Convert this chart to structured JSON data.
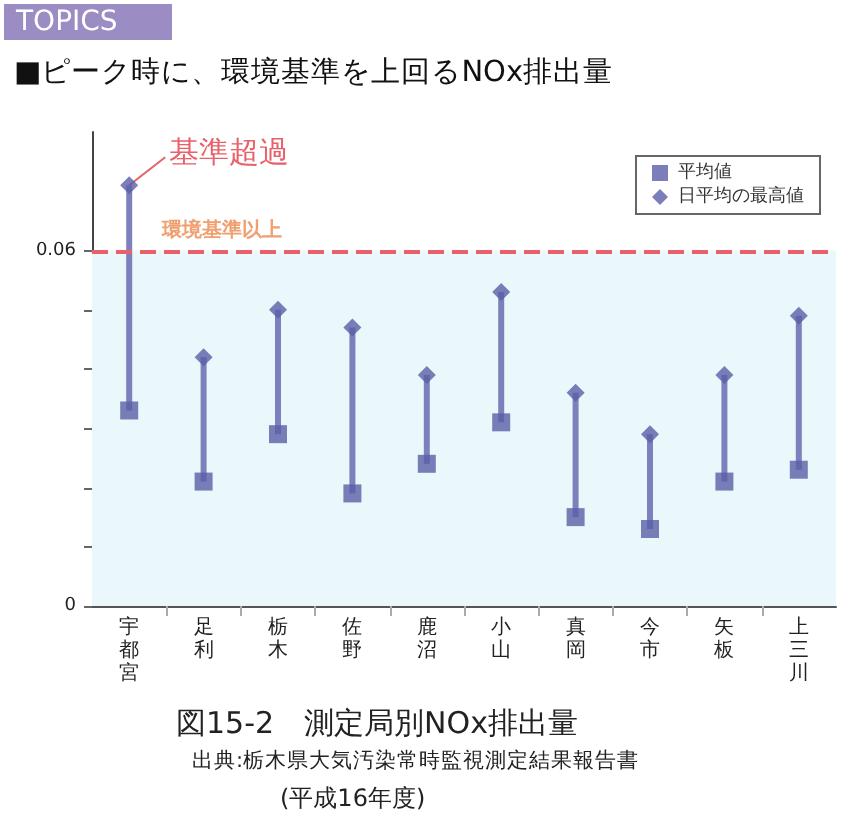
{
  "chart_data": {
    "type": "scatter",
    "title": "■ピーク時に、環境基準を上回るNOx排出量",
    "categories": [
      "宇都宮",
      "足利",
      "栃木",
      "佐野",
      "鹿沼",
      "小山",
      "真岡",
      "今市",
      "矢板",
      "上三川"
    ],
    "series": [
      {
        "name": "平均値",
        "color": "#5a5ea6",
        "marker": "square",
        "values": [
          0.033,
          0.021,
          0.029,
          0.019,
          0.024,
          0.031,
          0.015,
          0.013,
          0.021,
          0.023
        ]
      },
      {
        "name": "日平均の最高値",
        "color": "#5a5ea6",
        "marker": "diamond",
        "values": [
          0.071,
          0.042,
          0.05,
          0.047,
          0.039,
          0.053,
          0.036,
          0.029,
          0.039,
          0.049
        ]
      }
    ],
    "ylim": [
      0,
      0.08
    ],
    "yticks": [
      0,
      {
        "value": 0.01,
        "label": null
      },
      {
        "value": 0.02,
        "label": null
      },
      {
        "value": 0.03,
        "label": null
      },
      {
        "value": 0.04,
        "label": null
      },
      {
        "value": 0.05,
        "label": null
      },
      0.06
    ],
    "ref_lines": [
      {
        "axis": "y",
        "value": 0.06,
        "label": "環境基準以上",
        "color": "#e8606a",
        "line_style": "dashed"
      }
    ],
    "bands": [
      {
        "axis": "y",
        "from": 0,
        "to": 0.06,
        "color": "#eaf8fb"
      }
    ],
    "annotations": [
      "TOPICS",
      {
        "text": "基準超過",
        "x": "宇都宮",
        "y": 0.071
      },
      "図15-2　測定局別NOx排出量",
      "出典:栃木県大気汚染常時監視測定結果報告書",
      "(平成16年度)"
    ],
    "legend": "top right",
    "grid": false
  }
}
